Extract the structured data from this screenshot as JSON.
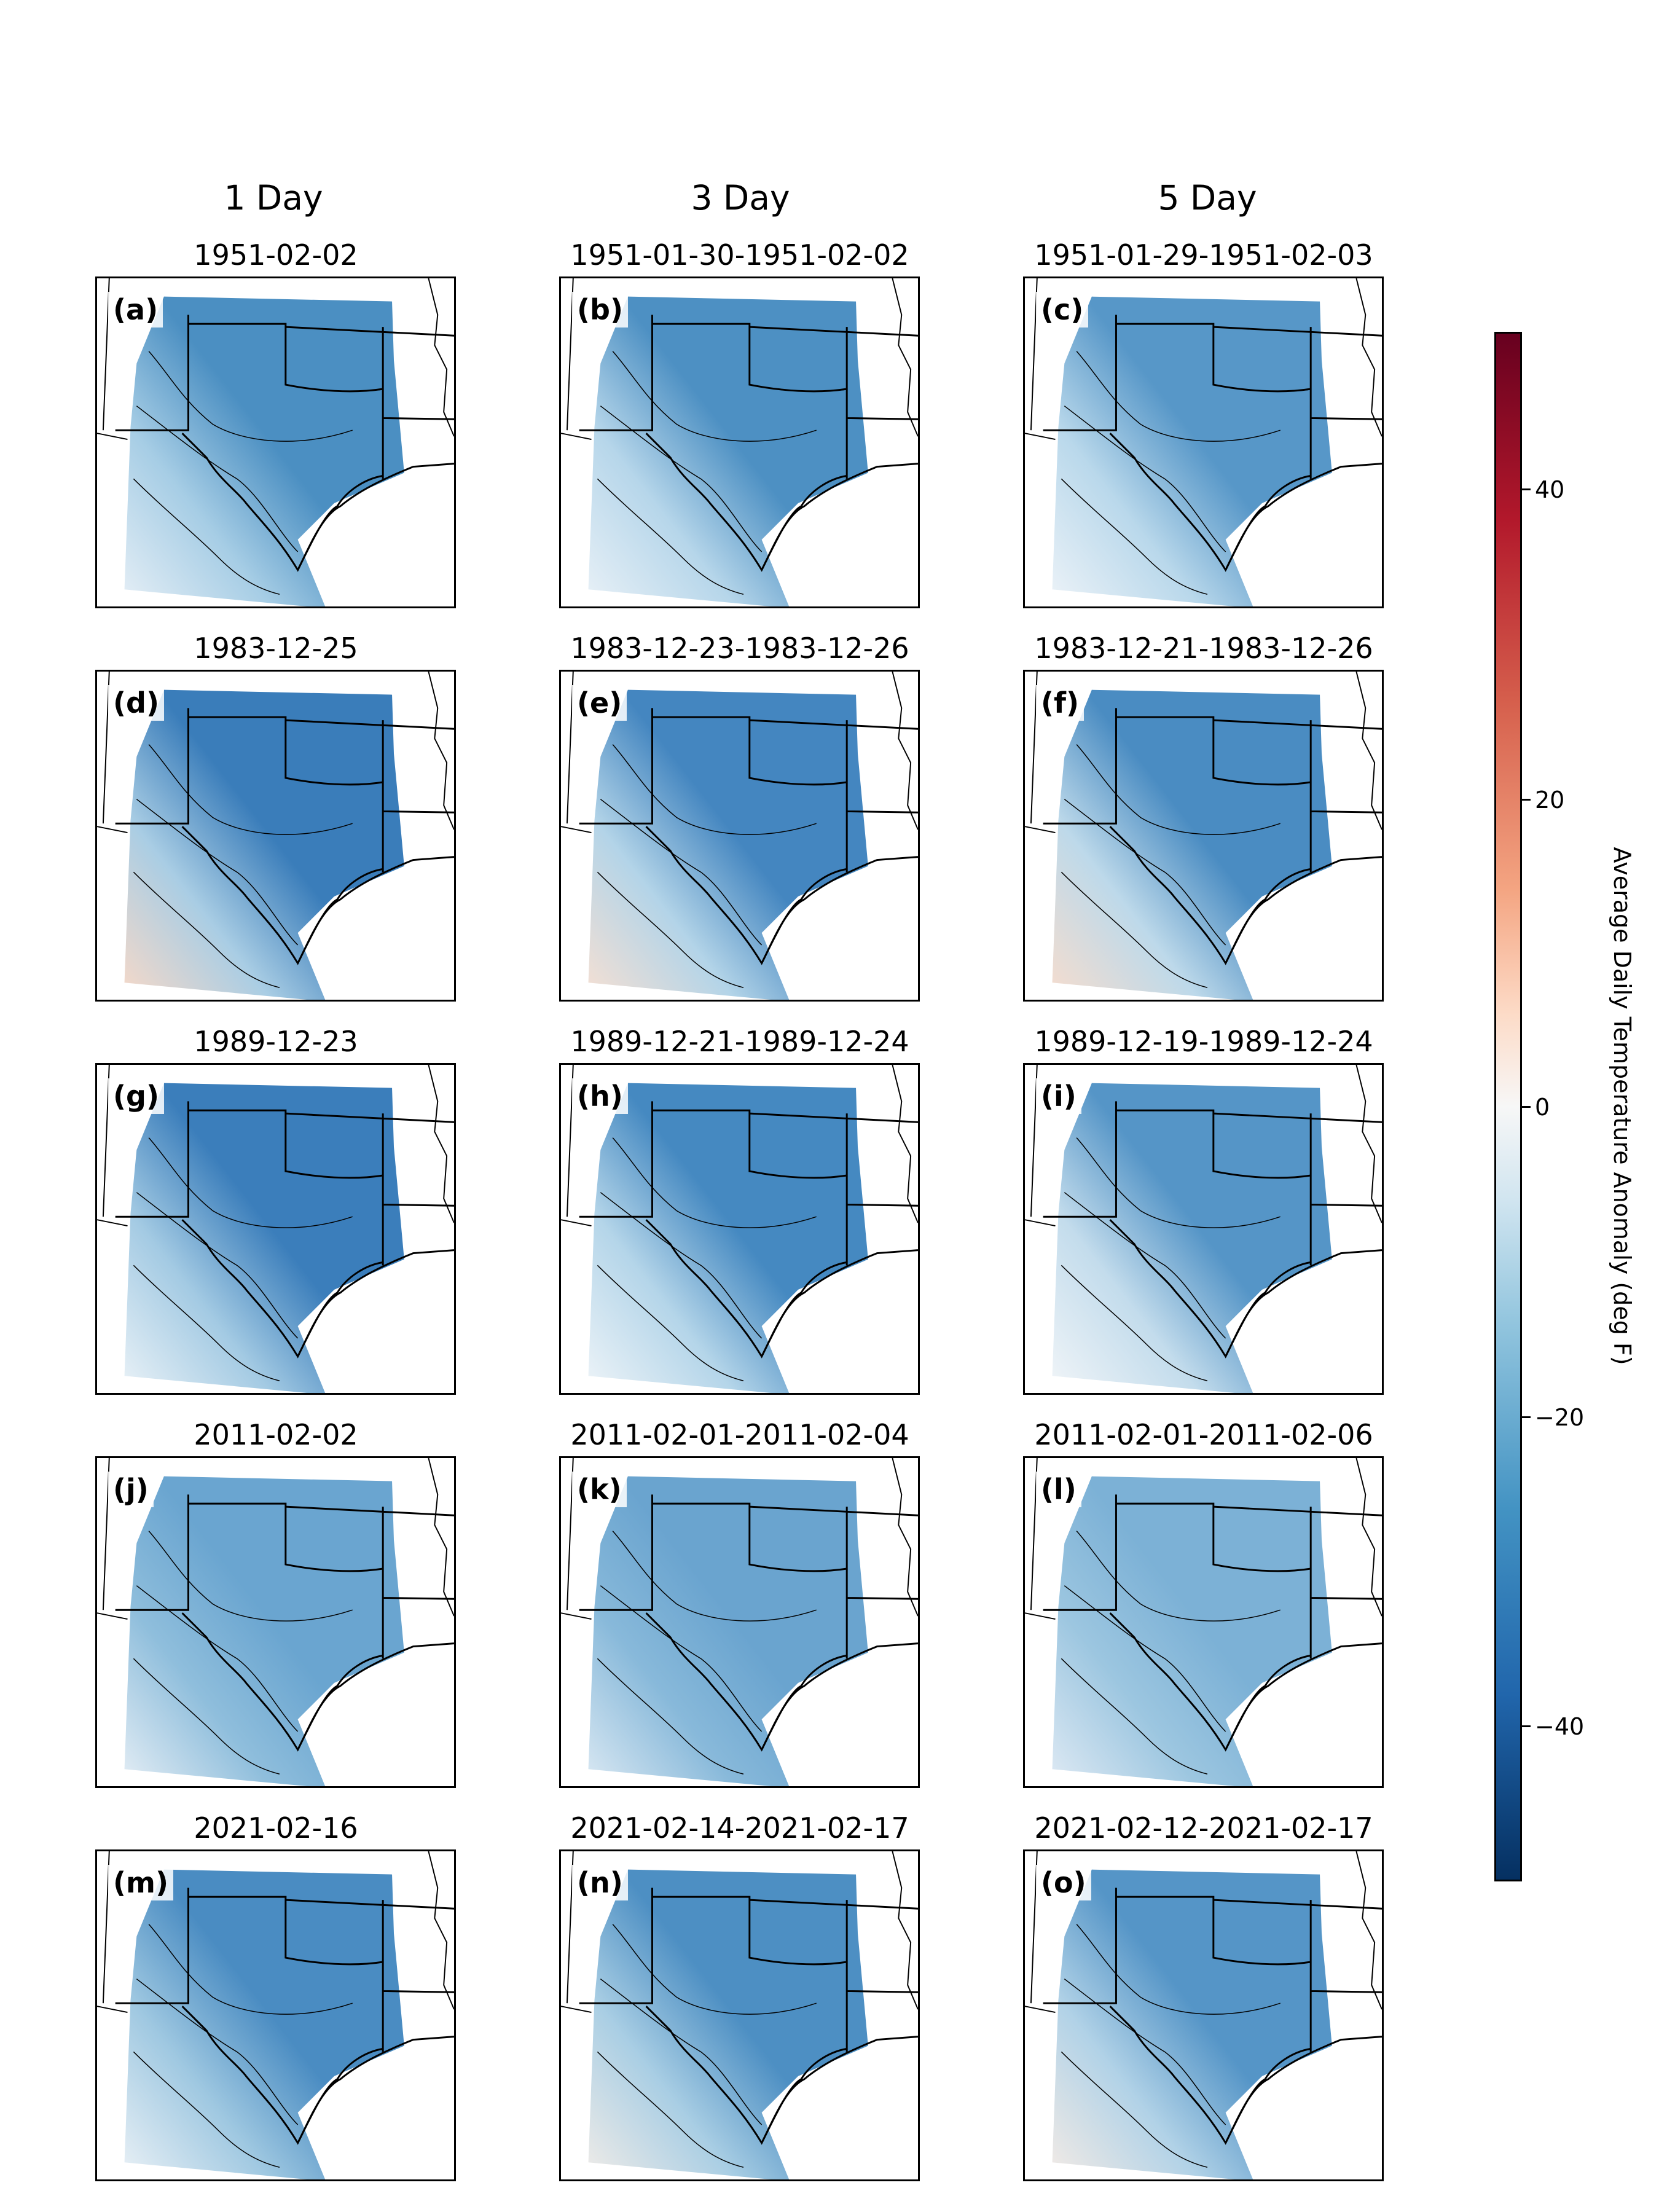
{
  "column_titles": [
    "1 Day",
    "3 Day",
    "5 Day"
  ],
  "panels": [
    {
      "label": "(a)",
      "title": "1951-02-02",
      "fill": "#4b8fc2",
      "west": "#a6cde5",
      "sw": "#e6eff6"
    },
    {
      "label": "(b)",
      "title": "1951-01-30-1951-02-02",
      "fill": "#4d90c3",
      "west": "#b6d6ea",
      "sw": "#e9f1f7"
    },
    {
      "label": "(c)",
      "title": "1951-01-29-1951-02-03",
      "fill": "#5797c8",
      "west": "#b9d8eb",
      "sw": "#edf3f8"
    },
    {
      "label": "(d)",
      "title": "1983-12-25",
      "fill": "#3a7dba",
      "west": "#a9cde4",
      "sw": "#f7d9c8"
    },
    {
      "label": "(e)",
      "title": "1983-12-23-1983-12-26",
      "fill": "#4486c0",
      "west": "#b3d4e8",
      "sw": "#f6e0d3"
    },
    {
      "label": "(f)",
      "title": "1983-12-21-1983-12-26",
      "fill": "#4a8cc2",
      "west": "#bdd9ea",
      "sw": "#f6ddce"
    },
    {
      "label": "(g)",
      "title": "1989-12-23",
      "fill": "#3b7ebb",
      "west": "#a3cae3",
      "sw": "#eaf2f7"
    },
    {
      "label": "(h)",
      "title": "1989-12-21-1989-12-24",
      "fill": "#4589c1",
      "west": "#b4d5e9",
      "sw": "#eef4f8"
    },
    {
      "label": "(i)",
      "title": "1989-12-19-1989-12-24",
      "fill": "#5595c7",
      "west": "#c3dcec",
      "sw": "#f1f5f8"
    },
    {
      "label": "(j)",
      "title": "2011-02-02",
      "fill": "#6aa5d0",
      "west": "#8fbedc",
      "sw": "#e5eef5"
    },
    {
      "label": "(k)",
      "title": "2011-02-01-2011-02-04",
      "fill": "#6aa4cf",
      "west": "#88b9da",
      "sw": "#dbe9f3"
    },
    {
      "label": "(l)",
      "title": "2011-02-01-2011-02-06",
      "fill": "#7cb1d6",
      "west": "#9cc6e0",
      "sw": "#dfeaf4"
    },
    {
      "label": "(m)",
      "title": "2021-02-16",
      "fill": "#4a8cc2",
      "west": "#9fc8e1",
      "sw": "#eaf1f6"
    },
    {
      "label": "(n)",
      "title": "2021-02-14-2021-02-17",
      "fill": "#4d8fc3",
      "west": "#a9cee4",
      "sw": "#f0ece8"
    },
    {
      "label": "(o)",
      "title": "2021-02-12-2021-02-17",
      "fill": "#5595c7",
      "west": "#b1d2e7",
      "sw": "#f3ebe6"
    }
  ],
  "colorbar": {
    "label": "Average Daily Temperature Anomaly (deg F)",
    "range": [
      -50,
      50
    ],
    "ticks": [
      "40",
      "20",
      "0",
      "−20",
      "−40"
    ],
    "colormap": "RdBu_r"
  }
}
